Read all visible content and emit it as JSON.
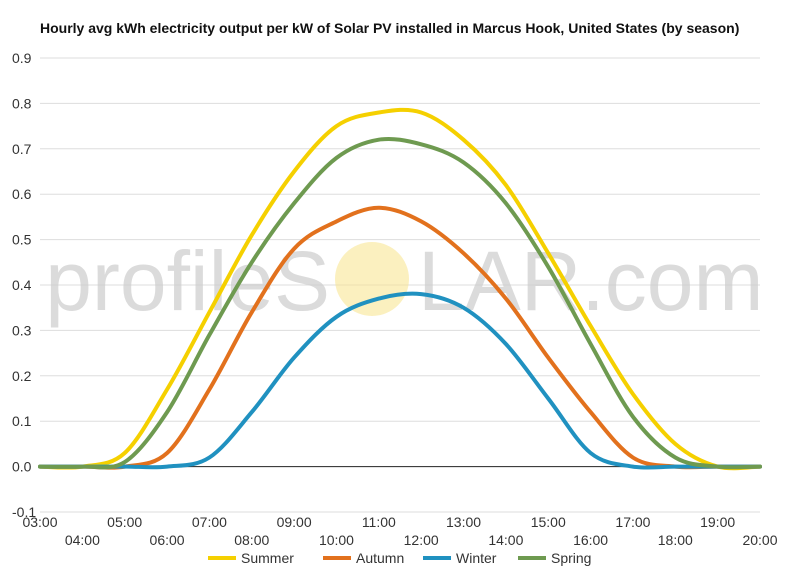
{
  "watermark": {
    "left": "profileS",
    "right": "LAR.com"
  },
  "chart_data": {
    "type": "line",
    "title": "Hourly avg kWh electricity output per kW of Solar PV installed in Marcus Hook, United States (by season)",
    "xlabel": "",
    "ylabel": "",
    "xlim": [
      3,
      20
    ],
    "ylim": [
      -0.1,
      0.9
    ],
    "yticks": [
      "-0.1",
      "0.0",
      "0.1",
      "0.2",
      "0.3",
      "0.4",
      "0.5",
      "0.6",
      "0.7",
      "0.8",
      "0.9"
    ],
    "xticks_upper": [
      "03:00",
      "05:00",
      "07:00",
      "09:00",
      "11:00",
      "13:00",
      "15:00",
      "17:00",
      "19:00"
    ],
    "xticks_lower": [
      "04:00",
      "06:00",
      "08:00",
      "10:00",
      "12:00",
      "14:00",
      "16:00",
      "18:00",
      "20:00"
    ],
    "grid": true,
    "legend_position": "bottom",
    "x": [
      3,
      4,
      5,
      6,
      7,
      8,
      9,
      10,
      11,
      12,
      13,
      14,
      15,
      16,
      17,
      18,
      19,
      20
    ],
    "series": [
      {
        "name": "Summer",
        "color": "#f5d000",
        "values": [
          0.0,
          0.0,
          0.03,
          0.17,
          0.34,
          0.51,
          0.65,
          0.75,
          0.78,
          0.78,
          0.72,
          0.62,
          0.47,
          0.31,
          0.16,
          0.05,
          0.0,
          0.0
        ]
      },
      {
        "name": "Autumn",
        "color": "#e2711d",
        "values": [
          0.0,
          0.0,
          0.0,
          0.03,
          0.17,
          0.34,
          0.48,
          0.54,
          0.57,
          0.54,
          0.47,
          0.37,
          0.24,
          0.12,
          0.02,
          0.0,
          0.0,
          0.0
        ]
      },
      {
        "name": "Winter",
        "color": "#2091c0",
        "values": [
          0.0,
          0.0,
          0.0,
          0.0,
          0.02,
          0.12,
          0.24,
          0.33,
          0.37,
          0.38,
          0.35,
          0.27,
          0.15,
          0.03,
          0.0,
          0.0,
          0.0,
          0.0
        ]
      },
      {
        "name": "Spring",
        "color": "#6e9a50",
        "values": [
          0.0,
          0.0,
          0.01,
          0.12,
          0.29,
          0.45,
          0.58,
          0.68,
          0.72,
          0.71,
          0.67,
          0.58,
          0.44,
          0.27,
          0.11,
          0.02,
          0.0,
          0.0
        ]
      }
    ]
  }
}
